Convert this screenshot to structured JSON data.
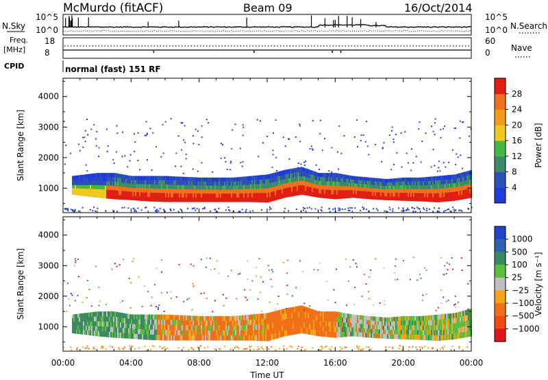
{
  "header": {
    "station": "McMurdo (fitACF)",
    "beam": "Beam 09",
    "date": "16/Oct/2014"
  },
  "noise_panel": {
    "left_label": "N.Sky",
    "right_label": "N.Search",
    "left_ticks": [
      "10^5",
      "10^0"
    ],
    "right_ticks": [
      "10^5",
      "10^0"
    ]
  },
  "freq_panel": {
    "left_label_1": "Freq.",
    "left_label_2": "[MHz]",
    "right_label": "Nave",
    "left_ticks": [
      "18",
      "8"
    ],
    "right_ticks": [
      "60",
      "0"
    ]
  },
  "cpid": {
    "label": "CPID",
    "value": "normal (fast) 151 RF"
  },
  "x_axis": {
    "label": "Time UT",
    "ticks": [
      "00:00",
      "04:00",
      "08:00",
      "12:00",
      "16:00",
      "20:00",
      "00:00"
    ]
  },
  "colors": {
    "power": [
      "#1e3cdc",
      "#2f4fb8",
      "#3d8a6b",
      "#43b843",
      "#f0c820",
      "#f59a1a",
      "#f0701e",
      "#e01e14"
    ],
    "velocity": [
      "#2244cc",
      "#3060b0",
      "#3c8a62",
      "#5abf3c",
      "#bebebe",
      "#f5a41a",
      "#f07018",
      "#f04a14",
      "#e01414"
    ]
  },
  "chart_data": [
    {
      "type": "heatmap",
      "name": "power",
      "ylabel": "Slant Range [km]",
      "xlabel": "",
      "x_range_hours": [
        0,
        24
      ],
      "ylim": [
        200,
        4600
      ],
      "yticks": [
        "1000",
        "2000",
        "3000",
        "4000"
      ],
      "colorbar": {
        "label": "Power [dB]",
        "ticks": [
          "4",
          "8",
          "12",
          "16",
          "20",
          "24",
          "28"
        ],
        "range": [
          0,
          32
        ]
      },
      "band": {
        "time_hours": [
          0.5,
          2,
          3,
          4,
          5,
          6,
          8,
          10,
          11,
          12,
          13,
          14,
          15,
          16,
          17,
          18,
          19,
          20,
          21,
          22,
          23,
          24
        ],
        "lower_km": [
          800,
          700,
          650,
          620,
          580,
          560,
          560,
          560,
          560,
          540,
          700,
          800,
          700,
          650,
          700,
          650,
          620,
          600,
          580,
          550,
          600,
          700
        ],
        "upper_km": [
          1400,
          1500,
          1500,
          1400,
          1400,
          1400,
          1350,
          1350,
          1400,
          1450,
          1600,
          1700,
          1500,
          1500,
          1400,
          1350,
          1300,
          1350,
          1350,
          1400,
          1450,
          1600
        ]
      }
    },
    {
      "type": "heatmap",
      "name": "velocity",
      "ylabel": "Slant Range [km]",
      "xlabel": "Time UT",
      "x_range_hours": [
        0,
        24
      ],
      "ylim": [
        200,
        4600
      ],
      "yticks": [
        "1000",
        "2000",
        "3000",
        "4000"
      ],
      "colorbar": {
        "label": "Velocity [m s⁻¹]",
        "ticks": [
          "1000",
          "500",
          "100",
          "25",
          "−25",
          "−100",
          "−500",
          "−1000"
        ]
      },
      "band": {
        "time_hours": [
          0.5,
          2,
          3,
          4,
          5,
          6,
          8,
          10,
          11,
          12,
          13,
          14,
          15,
          16,
          17,
          18,
          19,
          20,
          21,
          22,
          23,
          24
        ],
        "lower_km": [
          800,
          700,
          650,
          620,
          580,
          560,
          560,
          560,
          560,
          540,
          700,
          800,
          700,
          650,
          700,
          650,
          620,
          600,
          580,
          550,
          600,
          700
        ],
        "upper_km": [
          1400,
          1500,
          1500,
          1400,
          1400,
          1400,
          1350,
          1350,
          1400,
          1450,
          1600,
          1700,
          1500,
          1500,
          1400,
          1350,
          1300,
          1350,
          1350,
          1400,
          1450,
          1600
        ]
      }
    }
  ]
}
